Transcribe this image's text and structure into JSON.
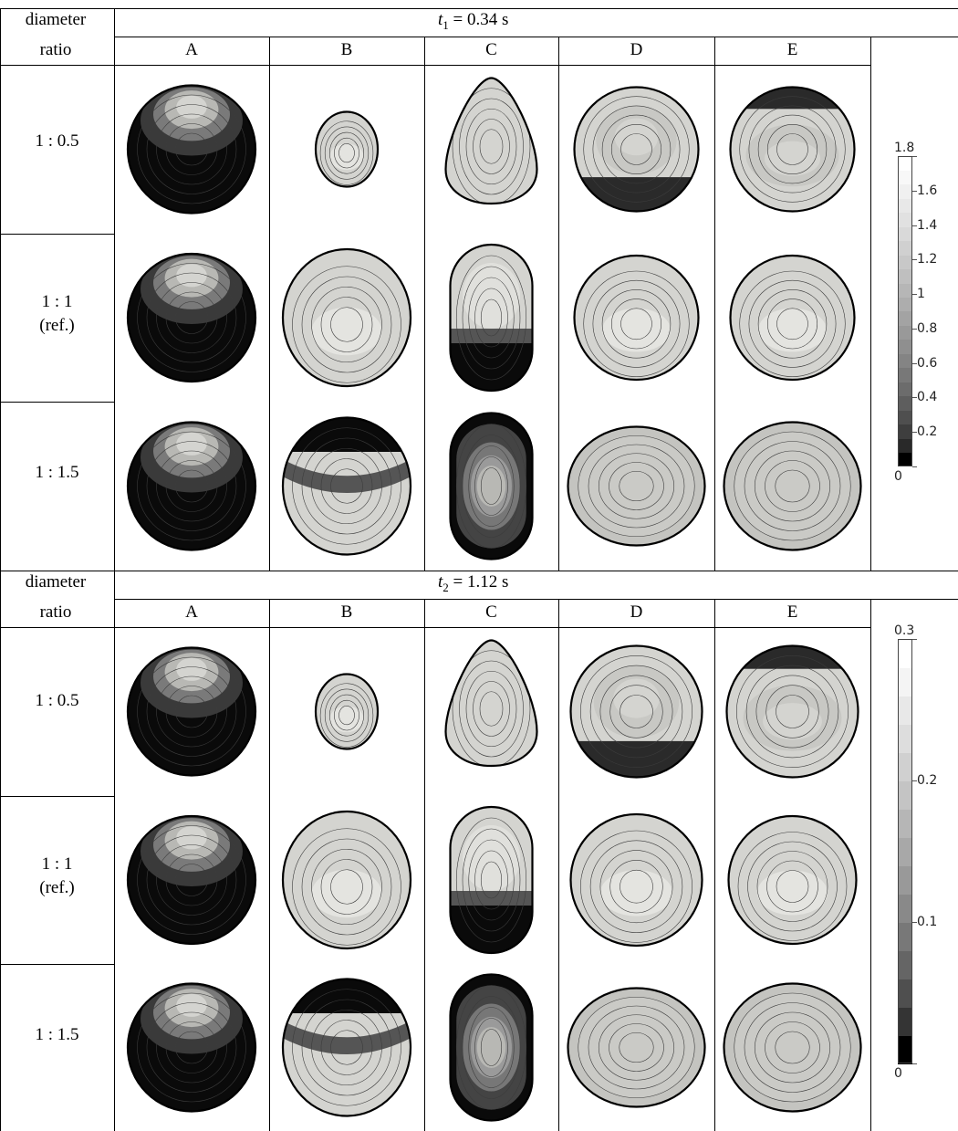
{
  "header": {
    "row_label_line1": "diameter",
    "row_label_line2": "ratio"
  },
  "columns": [
    "A",
    "B",
    "C",
    "D",
    "E"
  ],
  "panels": [
    {
      "time_symbol": "t",
      "time_subscript": "1",
      "time_rest": " = 0.34 s",
      "rows": [
        {
          "ratio": "1 : 0.5",
          "note": ""
        },
        {
          "ratio": "1 : 1",
          "note": "(ref.)"
        },
        {
          "ratio": "1 : 1.5",
          "note": ""
        }
      ],
      "colorbar": {
        "min": 0,
        "max": 1.8,
        "labels": [
          "1.8",
          "1.6",
          "1.4",
          "1.2",
          "1",
          "0.8",
          "0.6",
          "0.4",
          "0.2",
          "0"
        ],
        "label_values": [
          1.8,
          1.6,
          1.4,
          1.2,
          1.0,
          0.8,
          0.6,
          0.4,
          0.2,
          0
        ]
      }
    },
    {
      "time_symbol": "t",
      "time_subscript": "2",
      "time_rest": " = 1.12 s",
      "rows": [
        {
          "ratio": "1 : 0.5",
          "note": ""
        },
        {
          "ratio": "1 : 1",
          "note": "(ref.)"
        },
        {
          "ratio": "1 : 1.5",
          "note": ""
        }
      ],
      "colorbar": {
        "min": 0,
        "max": 0.3,
        "labels": [
          "0.3",
          "0.2",
          "0.1",
          "0"
        ],
        "label_values": [
          0.3,
          0.2,
          0.1,
          0
        ]
      }
    }
  ],
  "colors": {
    "dark": "#0a0a0a",
    "mid": "#6e6e6e",
    "light": "#d4d4d0",
    "pale": "#f2f2f2",
    "contour": "#3c3c3c",
    "rule": "#000000"
  }
}
